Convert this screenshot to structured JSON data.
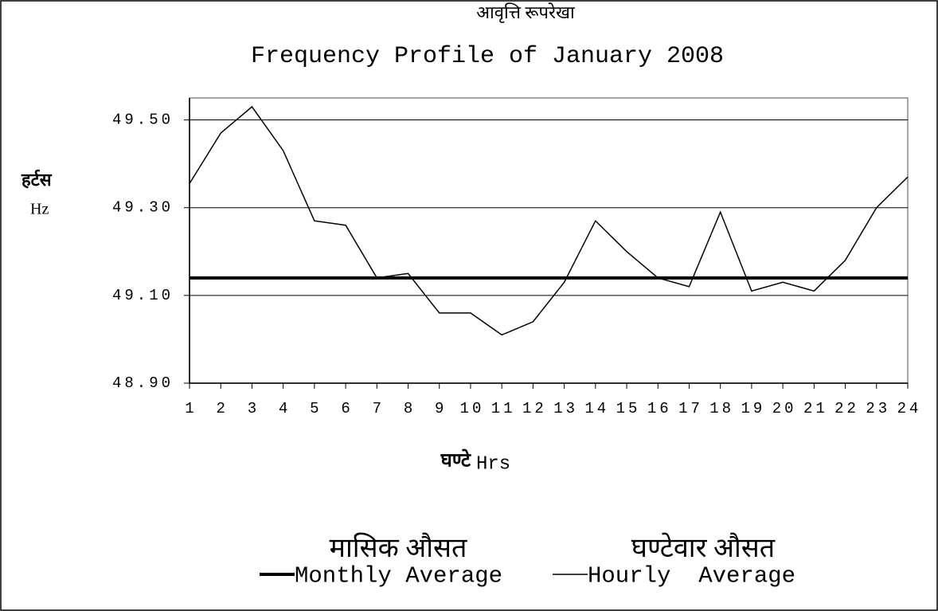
{
  "chart_data": {
    "type": "line",
    "title_hindi": "आवृत्ति रूपरेखा",
    "title": "Frequency Profile of January 2008",
    "ylabel_hindi": "हर्टस",
    "ylabel": "Hz",
    "xlabel_hindi": "घण्टे",
    "xlabel": "Hrs",
    "x": [
      1,
      2,
      3,
      4,
      5,
      6,
      7,
      8,
      9,
      10,
      11,
      12,
      13,
      14,
      15,
      16,
      17,
      18,
      19,
      20,
      21,
      22,
      23,
      24
    ],
    "xlim": [
      1,
      24
    ],
    "xticks": [
      1,
      2,
      3,
      4,
      5,
      6,
      7,
      8,
      9,
      10,
      11,
      12,
      13,
      14,
      15,
      16,
      17,
      18,
      19,
      20,
      21,
      22,
      23,
      24
    ],
    "ylim": [
      48.9,
      49.55
    ],
    "yticks": [
      {
        "value": 48.9,
        "label": "48.90"
      },
      {
        "value": 49.1,
        "label": "49.10"
      },
      {
        "value": 49.3,
        "label": "49.30"
      },
      {
        "value": 49.5,
        "label": "49.50"
      }
    ],
    "grid": true,
    "series": [
      {
        "name": "Monthly Average",
        "name_hindi": "मासिक औसत",
        "color": "#000000",
        "width": 4,
        "values": [
          49.14,
          49.14,
          49.14,
          49.14,
          49.14,
          49.14,
          49.14,
          49.14,
          49.14,
          49.14,
          49.14,
          49.14,
          49.14,
          49.14,
          49.14,
          49.14,
          49.14,
          49.14,
          49.14,
          49.14,
          49.14,
          49.14,
          49.14,
          49.14
        ]
      },
      {
        "name": "Hourly  Average",
        "name_hindi": "घण्टेवार औसत",
        "color": "#000000",
        "width": 1.5,
        "values": [
          49.355,
          49.47,
          49.53,
          49.43,
          49.27,
          49.26,
          49.14,
          49.15,
          49.06,
          49.06,
          49.01,
          49.04,
          49.13,
          49.27,
          49.2,
          49.14,
          49.12,
          49.29,
          49.11,
          49.13,
          49.11,
          49.18,
          49.3,
          49.37
        ]
      }
    ]
  }
}
